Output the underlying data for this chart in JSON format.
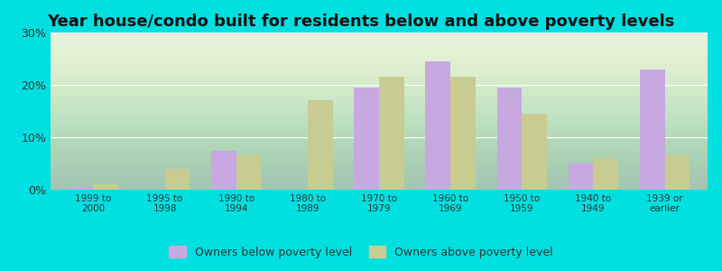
{
  "title": "Year house/condo built for residents below and above poverty levels",
  "categories": [
    "1999 to\n2000",
    "1995 to\n1998",
    "1990 to\n1994",
    "1980 to\n1989",
    "1970 to\n1979",
    "1960 to\n1969",
    "1950 to\n1959",
    "1940 to\n1949",
    "1939 or\nearlier"
  ],
  "below_poverty": [
    0.5,
    0.0,
    7.5,
    0.0,
    19.5,
    24.5,
    19.5,
    5.0,
    23.0
  ],
  "above_poverty": [
    1.0,
    4.0,
    6.5,
    17.0,
    21.5,
    21.5,
    14.5,
    6.0,
    6.5
  ],
  "below_color": "#c8a8e0",
  "above_color": "#c8cc90",
  "background_outer": "#00e0e0",
  "ylim": [
    0,
    30
  ],
  "yticks": [
    0,
    10,
    20,
    30
  ],
  "legend_below": "Owners below poverty level",
  "legend_above": "Owners above poverty level",
  "title_fontsize": 13,
  "bar_width": 0.35
}
